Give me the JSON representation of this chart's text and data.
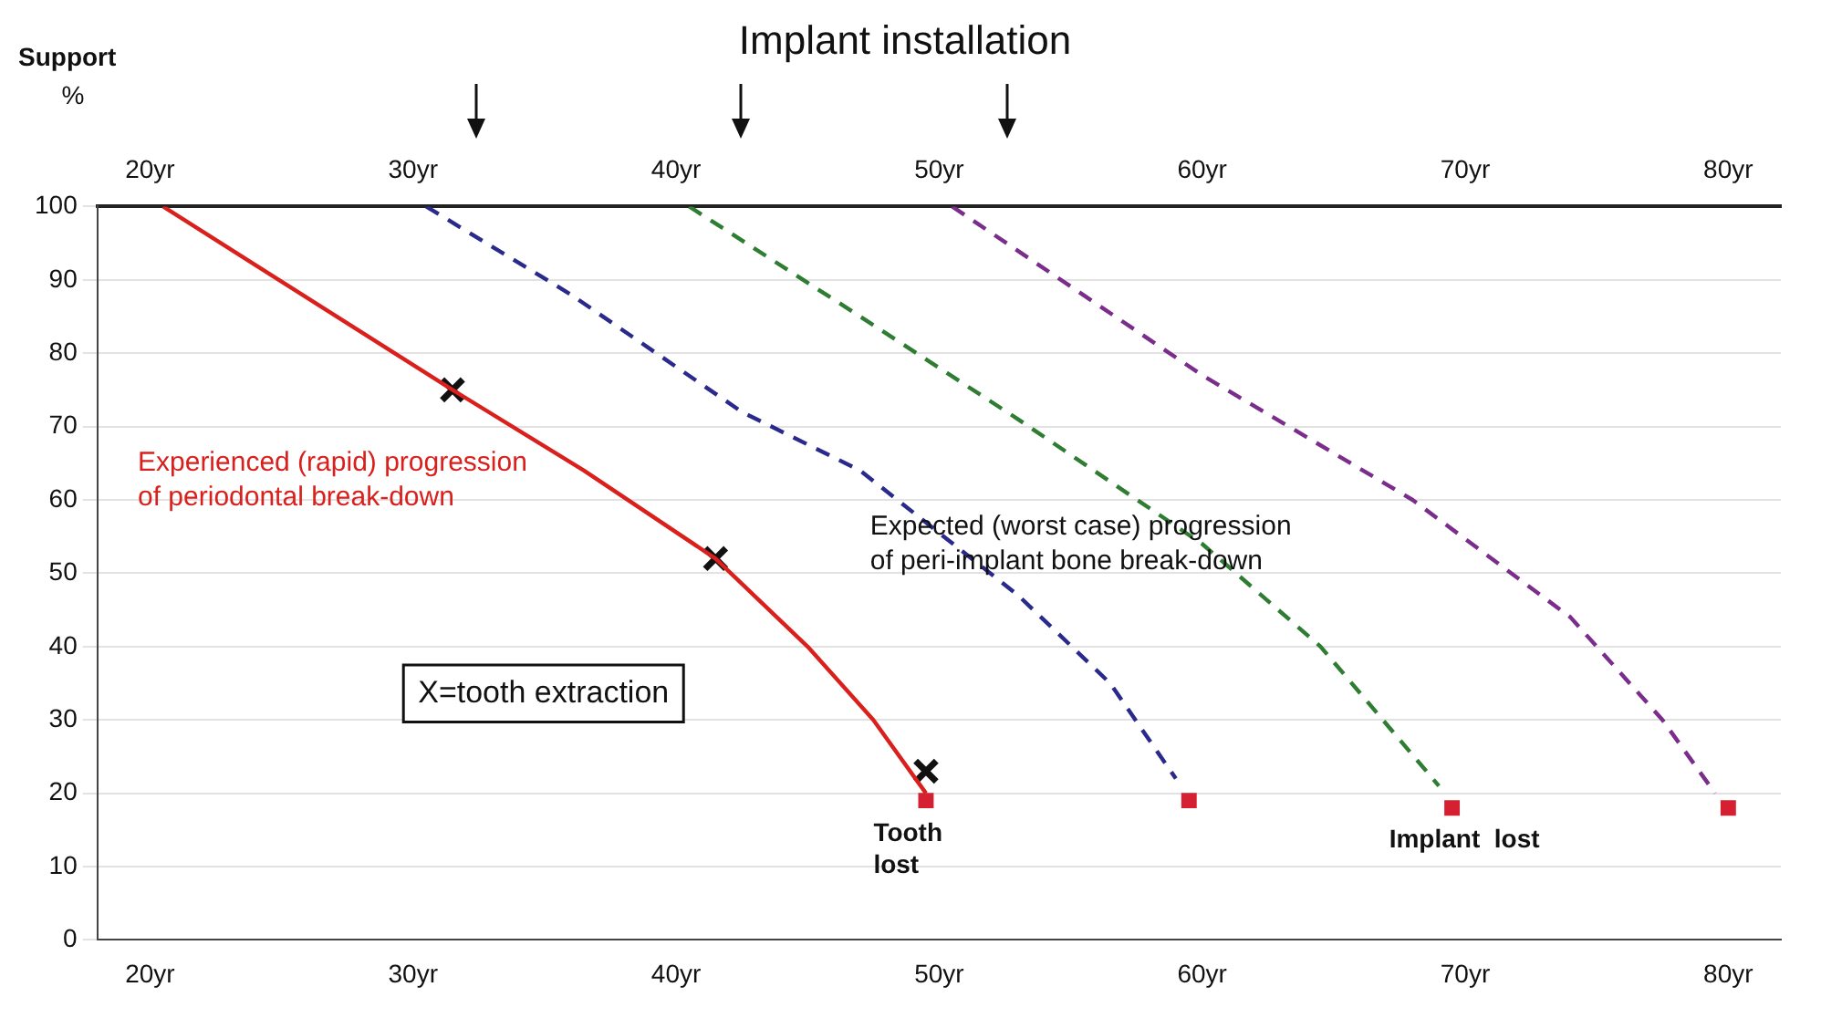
{
  "chart_data": {
    "type": "line",
    "title": "Implant installation",
    "ylabel": "Support %",
    "xlim": [
      18,
      82
    ],
    "xticks": [
      {
        "value": 20,
        "label": "20yr"
      },
      {
        "value": 30,
        "label": "30yr"
      },
      {
        "value": 40,
        "label": "40yr"
      },
      {
        "value": 50,
        "label": "50yr"
      },
      {
        "value": 60,
        "label": "60yr"
      },
      {
        "value": 70,
        "label": "70yr"
      },
      {
        "value": 80,
        "label": "80yr"
      }
    ],
    "x2lim": [
      18,
      82
    ],
    "x2ticks": [
      {
        "value": 20,
        "label": "20yr"
      },
      {
        "value": 30,
        "label": "30yr"
      },
      {
        "value": 40,
        "label": "40yr"
      },
      {
        "value": 50,
        "label": "50yr"
      },
      {
        "value": 60,
        "label": "60yr"
      },
      {
        "value": 70,
        "label": "70yr"
      },
      {
        "value": 80,
        "label": "80yr"
      }
    ],
    "ylim": [
      0,
      100
    ],
    "yticks": [
      0,
      10,
      20,
      30,
      40,
      50,
      60,
      70,
      80,
      90,
      100
    ],
    "grid": "y",
    "legend": false,
    "series": [
      {
        "color": "#d9201c",
        "line_style": "solid",
        "marker": "none",
        "x": [
          20.5,
          31.5,
          36.5,
          41.5,
          45,
          47.5,
          49.5
        ],
        "values": [
          100,
          75,
          64,
          52,
          40,
          30,
          20
        ]
      },
      {
        "color": "#2a2a8c",
        "line_style": "dashed",
        "marker": "none",
        "x": [
          30.5,
          36,
          42.5,
          47,
          53,
          56.5,
          59
        ],
        "values": [
          100,
          88,
          72,
          64,
          47,
          35,
          22
        ]
      },
      {
        "color": "#2e7d32",
        "line_style": "dashed",
        "marker": "none",
        "x": [
          40.5,
          47,
          53,
          60,
          64.5,
          69
        ],
        "values": [
          100,
          85,
          71,
          54,
          40,
          21
        ]
      },
      {
        "color": "#7b2d8c",
        "line_style": "dashed",
        "marker": "none",
        "x": [
          50.5,
          60,
          68,
          74,
          77.5,
          79.5
        ],
        "values": [
          100,
          77,
          60,
          44,
          30,
          20
        ]
      },
      {
        "type": "scatter",
        "color": "#111111",
        "marker": "cross",
        "x": [
          31.5,
          41.5,
          49.5
        ],
        "values": [
          75,
          52,
          23
        ]
      },
      {
        "type": "scatter",
        "color": "#d42030",
        "marker": "square",
        "x": [
          49.5,
          59.5,
          69.5,
          80
        ],
        "values": [
          19,
          19,
          18,
          18
        ]
      }
    ],
    "annotations": [
      "Experienced (rapid) progression\nof periodontal break-down",
      "Expected (worst case) progression\nof peri-implant bone break-down",
      "X=tooth extraction",
      "Tooth\nlost",
      "Implant  lost"
    ]
  }
}
